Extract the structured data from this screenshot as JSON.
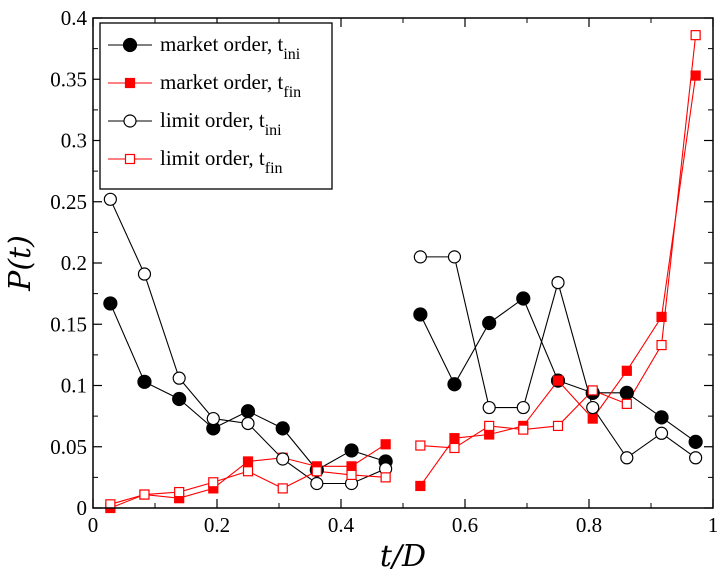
{
  "chart_data": {
    "type": "line",
    "xlabel": "t/D",
    "ylabel": "P(t)",
    "xlim": [
      0,
      1
    ],
    "ylim": [
      0,
      0.4
    ],
    "grid": false,
    "legend_position": "top-left",
    "xticks": [
      "0",
      "0.2",
      "0.4",
      "0.6",
      "0.8",
      "1"
    ],
    "xtick_values": [
      0,
      0.2,
      0.4,
      0.6,
      0.8,
      1
    ],
    "yticks": [
      "0",
      "0.05",
      "0.1",
      "0.15",
      "0.2",
      "0.25",
      "0.3",
      "0.35",
      "0.4"
    ],
    "ytick_values": [
      0,
      0.05,
      0.1,
      0.15,
      0.2,
      0.25,
      0.3,
      0.35,
      0.4
    ],
    "series": [
      {
        "name": "market order, t",
        "subscript": "ini",
        "color": "#000000",
        "marker": "circle-filled",
        "segments": [
          {
            "x": [
              0.028,
              0.083,
              0.139,
              0.194,
              0.25,
              0.306,
              0.361,
              0.417,
              0.472
            ],
            "y": [
              0.167,
              0.103,
              0.089,
              0.065,
              0.079,
              0.065,
              0.031,
              0.047,
              0.038
            ]
          },
          {
            "x": [
              0.528,
              0.583,
              0.639,
              0.694,
              0.75,
              0.806,
              0.861,
              0.917,
              0.972
            ],
            "y": [
              0.158,
              0.101,
              0.151,
              0.171,
              0.104,
              0.094,
              0.094,
              0.074,
              0.054
            ]
          }
        ]
      },
      {
        "name": "market order, t",
        "subscript": "fin",
        "color": "#ff0000",
        "marker": "square-filled",
        "segments": [
          {
            "x": [
              0.028,
              0.083,
              0.139,
              0.194,
              0.25,
              0.306,
              0.361,
              0.417,
              0.472
            ],
            "y": [
              0.0,
              0.011,
              0.008,
              0.016,
              0.038,
              0.041,
              0.034,
              0.034,
              0.052
            ]
          },
          {
            "x": [
              0.528,
              0.583,
              0.639,
              0.694,
              0.75,
              0.806,
              0.861,
              0.917,
              0.972
            ],
            "y": [
              0.018,
              0.057,
              0.06,
              0.067,
              0.104,
              0.073,
              0.112,
              0.156,
              0.353
            ]
          }
        ]
      },
      {
        "name": "limit order, t",
        "subscript": "ini",
        "color": "#000000",
        "marker": "circle-open",
        "segments": [
          {
            "x": [
              0.028,
              0.083,
              0.139,
              0.194,
              0.25,
              0.306,
              0.361,
              0.417,
              0.472
            ],
            "y": [
              0.252,
              0.191,
              0.106,
              0.073,
              0.069,
              0.04,
              0.02,
              0.02,
              0.032
            ]
          },
          {
            "x": [
              0.528,
              0.583,
              0.639,
              0.694,
              0.75,
              0.806,
              0.861,
              0.917,
              0.972
            ],
            "y": [
              0.205,
              0.205,
              0.082,
              0.082,
              0.184,
              0.082,
              0.041,
              0.061,
              0.041
            ]
          }
        ]
      },
      {
        "name": "limit order, t",
        "subscript": "fin",
        "color": "#ff0000",
        "marker": "square-open",
        "segments": [
          {
            "x": [
              0.028,
              0.083,
              0.139,
              0.194,
              0.25,
              0.306,
              0.361,
              0.417,
              0.472
            ],
            "y": [
              0.003,
              0.011,
              0.013,
              0.021,
              0.03,
              0.016,
              0.03,
              0.027,
              0.025
            ]
          },
          {
            "x": [
              0.528,
              0.583,
              0.639,
              0.694,
              0.75,
              0.806,
              0.861,
              0.917,
              0.972
            ],
            "y": [
              0.051,
              0.049,
              0.067,
              0.064,
              0.067,
              0.096,
              0.085,
              0.133,
              0.386
            ]
          }
        ]
      }
    ]
  }
}
